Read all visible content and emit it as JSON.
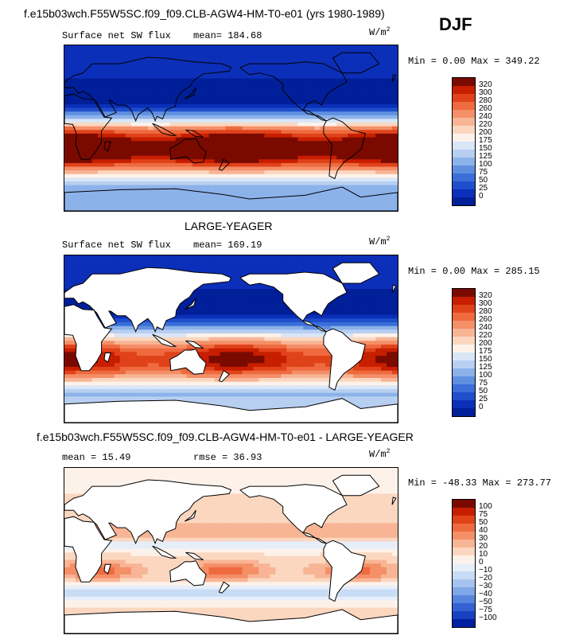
{
  "header": {
    "title": "f.e15b03wch.F55W5SC.f09_f09.CLB-AGW4-HM-T0-e01 (yrs 1980-1989)",
    "season": "DJF"
  },
  "panels": [
    {
      "label": "",
      "field": "Surface net SW flux",
      "stat1": "mean= 184.68",
      "stat2": "",
      "units_base": "W/m",
      "units_exp": "2",
      "minmax": "Min =   0.00 Max = 349.22",
      "colorbar_labels": [
        "320",
        "300",
        "280",
        "260",
        "240",
        "220",
        "200",
        "175",
        "150",
        "125",
        "100",
        "75",
        "50",
        "25",
        "0"
      ],
      "colors": [
        "#7a0a00",
        "#c81e00",
        "#e0421a",
        "#ef6a3f",
        "#f48f68",
        "#f8b595",
        "#fbd7c0",
        "#fdf2ea",
        "#d9e6f7",
        "#b7cff1",
        "#8cb2ea",
        "#5f8fe0",
        "#3a6ed8",
        "#1f4fcc",
        "#0b2fb8",
        "#001f99"
      ],
      "fill_mode": "model"
    },
    {
      "label": "LARGE-YEAGER",
      "field": "Surface net SW flux",
      "stat1": "mean= 169.19",
      "stat2": "",
      "units_base": "W/m",
      "units_exp": "2",
      "minmax": "Min =   0.00 Max = 285.15",
      "colorbar_labels": [
        "320",
        "300",
        "280",
        "260",
        "240",
        "220",
        "200",
        "175",
        "150",
        "125",
        "100",
        "75",
        "50",
        "25",
        "0"
      ],
      "colors": [
        "#7a0a00",
        "#c81e00",
        "#e0421a",
        "#ef6a3f",
        "#f48f68",
        "#f8b595",
        "#fbd7c0",
        "#fdf2ea",
        "#d9e6f7",
        "#b7cff1",
        "#8cb2ea",
        "#5f8fe0",
        "#3a6ed8",
        "#1f4fcc",
        "#0b2fb8",
        "#001f99"
      ],
      "fill_mode": "obs"
    },
    {
      "label": "f.e15b03wch.F55W5SC.f09_f09.CLB-AGW4-HM-T0-e01 - LARGE-YEAGER",
      "field": "",
      "stat1": "mean =   15.49",
      "stat2": "rmse =   36.93",
      "units_base": "W/m",
      "units_exp": "2",
      "minmax": "Min = -48.33 Max = 273.77",
      "colorbar_labels": [
        "100",
        "75",
        "50",
        "40",
        "30",
        "20",
        "10",
        "0",
        "−10",
        "−20",
        "−30",
        "−40",
        "−50",
        "−75",
        "−100"
      ],
      "colors": [
        "#7a0a00",
        "#c81e00",
        "#e0421a",
        "#ef6a3f",
        "#f48f68",
        "#f8b595",
        "#fbd7c0",
        "#fdf2ea",
        "#e6eefa",
        "#c9dcf5",
        "#a6c3ef",
        "#7fa6e6",
        "#5784dc",
        "#3562d2",
        "#1a40c2",
        "#0020a0"
      ],
      "fill_mode": "diff"
    }
  ]
}
